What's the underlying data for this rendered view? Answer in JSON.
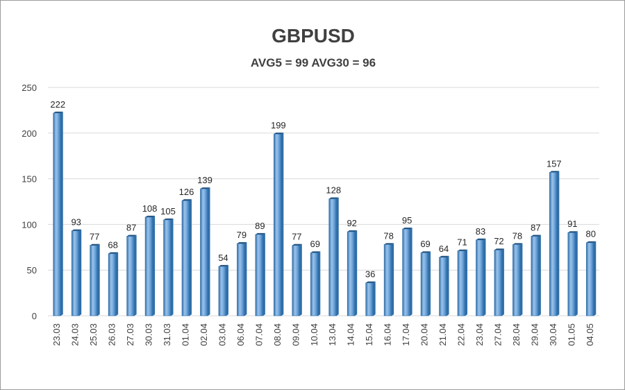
{
  "chart_data": {
    "type": "bar",
    "title": "GBPUSD",
    "subtitle": "AVG5 = 99 AVG30 = 96",
    "categories": [
      "23.03",
      "24.03",
      "25.03",
      "26.03",
      "27.03",
      "30.03",
      "31.03",
      "01.04",
      "02.04",
      "03.04",
      "06.04",
      "07.04",
      "08.04",
      "09.04",
      "10.04",
      "13.04",
      "14.04",
      "15.04",
      "16.04",
      "17.04",
      "20.04",
      "21.04",
      "22.04",
      "23.04",
      "27.04",
      "28.04",
      "29.04",
      "30.04",
      "01.05",
      "04.05"
    ],
    "values": [
      222,
      93,
      77,
      68,
      87,
      108,
      105,
      126,
      139,
      54,
      79,
      89,
      199,
      77,
      69,
      128,
      92,
      36,
      78,
      95,
      69,
      64,
      71,
      83,
      72,
      78,
      87,
      157,
      91,
      80
    ],
    "yticks": [
      0,
      50,
      100,
      150,
      200,
      250
    ],
    "ylim": [
      0,
      250
    ],
    "grid": true,
    "legend": "none",
    "colors": {
      "bar_light": "#9cc3ea",
      "bar_mid": "#5b9bd5",
      "bar_dark": "#2f6ea8",
      "bar_top": "#1f4e79",
      "grid": "#d9d9d9",
      "text": "#404040"
    }
  }
}
